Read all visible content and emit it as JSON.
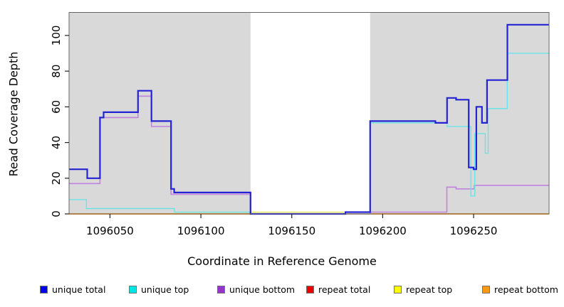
{
  "chart_data": {
    "type": "line",
    "subtype": "step",
    "title": "",
    "xlabel": "Coordinate in Reference Genome",
    "ylabel": "Read Coverage Depth",
    "x_ticks": [
      1096050,
      1096100,
      1096150,
      1096200,
      1096250
    ],
    "y_ticks": [
      0,
      20,
      40,
      60,
      80,
      100
    ],
    "xlim": [
      1096027.5,
      1096291.5
    ],
    "ylim": [
      0,
      112.9
    ],
    "grid": false,
    "legend_position": "bottom",
    "background_color": "#ffffff",
    "shaded_regions": [
      {
        "name": "repeat-masked-region-left",
        "x0": 1096027.5,
        "x1": 1096127.3,
        "color": "#d9d9d9"
      },
      {
        "name": "repeat-masked-region-right",
        "x0": 1096193.1,
        "x1": 1096291.5,
        "color": "#d9d9d9"
      }
    ],
    "series": [
      {
        "name": "unique total",
        "color": "#0000EE",
        "line_color": "#2323D4",
        "line_width": 2.2,
        "points": [
          [
            1096027.5,
            25
          ],
          [
            1096037.5,
            20
          ],
          [
            1096044.5,
            54
          ],
          [
            1096046.5,
            57
          ],
          [
            1096065.4,
            69
          ],
          [
            1096072.8,
            52
          ],
          [
            1096083.6,
            14
          ],
          [
            1096085.3,
            12
          ],
          [
            1096127.3,
            0
          ],
          [
            1096179.5,
            1
          ],
          [
            1096193.1,
            52
          ],
          [
            1096229,
            51
          ],
          [
            1096235.4,
            65
          ],
          [
            1096240.4,
            64
          ],
          [
            1096247.3,
            26
          ],
          [
            1096250,
            25
          ],
          [
            1096251.5,
            60
          ],
          [
            1096254.6,
            51
          ],
          [
            1096257.4,
            75
          ],
          [
            1096268.6,
            106
          ]
        ]
      },
      {
        "name": "unique top",
        "color": "#00E5E5",
        "line_color": "#5FE6EA",
        "line_width": 1.3,
        "points": [
          [
            1096027.5,
            8
          ],
          [
            1096037,
            3
          ],
          [
            1096085.5,
            1
          ],
          [
            1096127.3,
            0
          ],
          [
            1096193.1,
            51
          ],
          [
            1096235.4,
            49
          ],
          [
            1096248.5,
            10
          ],
          [
            1096250.7,
            45
          ],
          [
            1096256.4,
            34
          ],
          [
            1096258,
            59
          ],
          [
            1096268.5,
            90
          ]
        ]
      },
      {
        "name": "unique bottom",
        "color": "#9932CC",
        "line_color": "#C184DE",
        "line_width": 1.6,
        "points": [
          [
            1096027.5,
            17
          ],
          [
            1096044.5,
            54
          ],
          [
            1096065.4,
            66
          ],
          [
            1096072.8,
            49
          ],
          [
            1096083.6,
            11
          ],
          [
            1096127.3,
            0
          ],
          [
            1096193.1,
            1
          ],
          [
            1096235.3,
            15
          ],
          [
            1096240.4,
            14
          ],
          [
            1096250.4,
            16
          ]
        ]
      },
      {
        "name": "repeat total",
        "color": "#EE0000",
        "line_color": "#EE0000",
        "line_width": 1.2,
        "points": [
          [
            1096027.5,
            0
          ]
        ]
      },
      {
        "name": "repeat top",
        "color": "#FFFF00",
        "line_color": "#E8E84A",
        "line_width": 1.2,
        "points": [
          [
            1096027.5,
            0
          ],
          [
            1096085.5,
            1
          ],
          [
            1096193.1,
            0
          ]
        ]
      },
      {
        "name": "repeat bottom",
        "color": "#FF9912",
        "line_color": "#FF9912",
        "line_width": 1.8,
        "points": [
          [
            1096027.5,
            0
          ]
        ]
      }
    ],
    "draw_order": [
      3,
      4,
      5,
      2,
      1,
      0
    ]
  }
}
